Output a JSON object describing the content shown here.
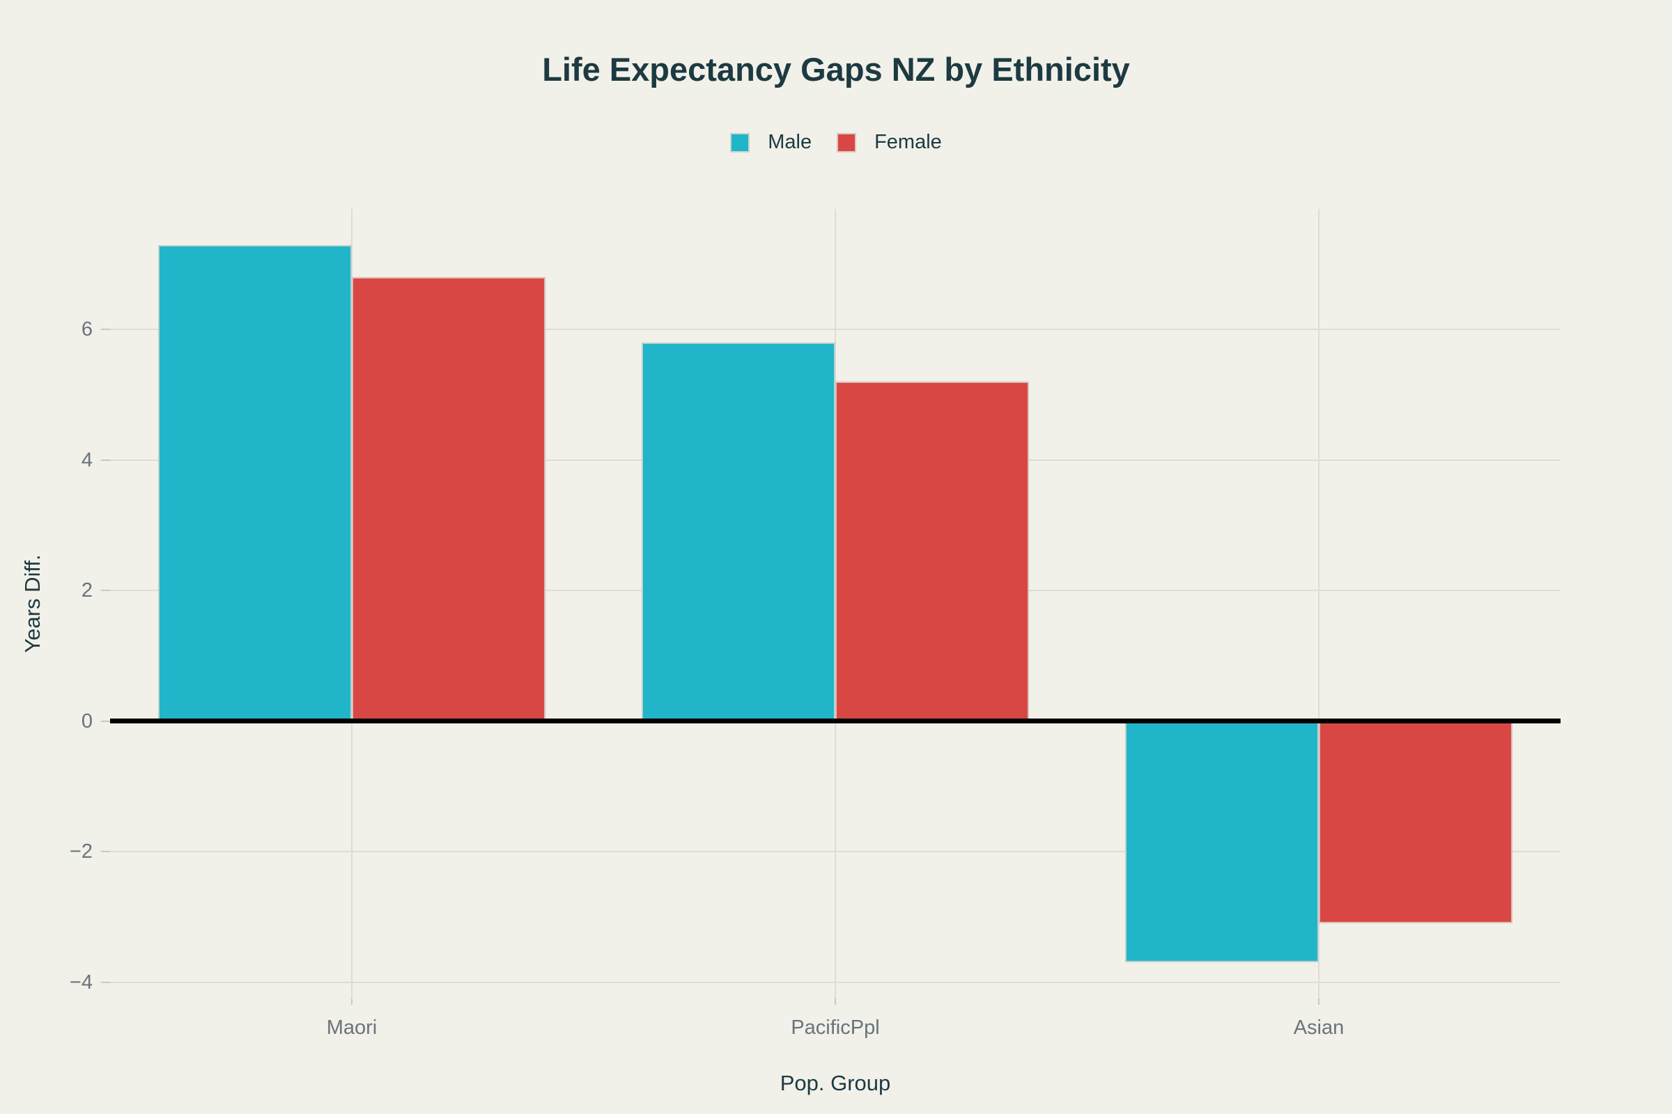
{
  "title": "Life Expectancy Gaps NZ by Ethnicity",
  "chart_data": {
    "type": "bar",
    "title": "Life Expectancy Gaps NZ by Ethnicity",
    "categories": [
      "Maori",
      "PacificPpl",
      "Asian"
    ],
    "series": [
      {
        "name": "Male",
        "color": "#20B5C9",
        "values": [
          7.3,
          5.8,
          -3.7
        ]
      },
      {
        "name": "Female",
        "color": "#D94745",
        "values": [
          6.8,
          5.2,
          -3.1
        ]
      }
    ],
    "xlabel": "Pop. Group",
    "ylabel": "Years Diff.",
    "ylim": [
      -4.25,
      7.85
    ],
    "yticks": [
      -4,
      -2,
      0,
      2,
      4,
      6
    ],
    "ytick_labels": [
      "−4",
      "−2",
      "0",
      "2",
      "4",
      "6"
    ],
    "grid": true,
    "legend_position": "top-center",
    "zero_line": true,
    "bar_group_width": 0.8
  },
  "colors": {
    "background": "#F1F0E9",
    "title_text": "#1C3A41",
    "tick_text": "#6A737B",
    "gridline": "#DEDCD4",
    "zero_line": "#000000",
    "bar_edge": "#D8D6CD",
    "male": "#20B5C9",
    "female": "#D94745"
  }
}
